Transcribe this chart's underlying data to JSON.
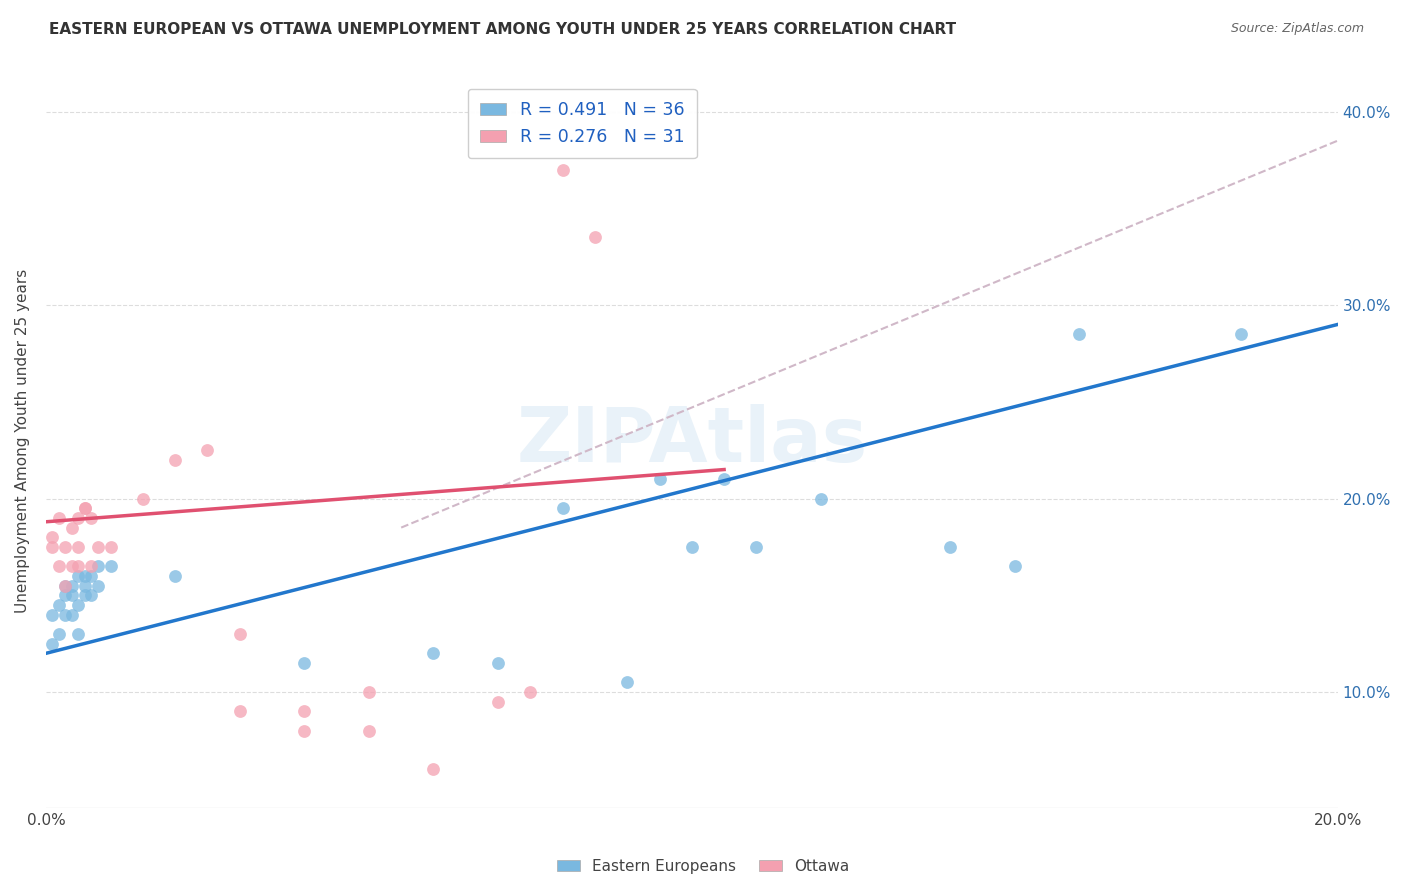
{
  "title": "EASTERN EUROPEAN VS OTTAWA UNEMPLOYMENT AMONG YOUTH UNDER 25 YEARS CORRELATION CHART",
  "source": "Source: ZipAtlas.com",
  "ylabel": "Unemployment Among Youth under 25 years",
  "xlim": [
    0.0,
    0.2
  ],
  "ylim": [
    0.04,
    0.42
  ],
  "xticks": [
    0.0,
    0.02,
    0.04,
    0.06,
    0.08,
    0.1,
    0.12,
    0.14,
    0.16,
    0.18,
    0.2
  ],
  "yticks": [
    0.1,
    0.2,
    0.3,
    0.4
  ],
  "blue_R": 0.491,
  "blue_N": 36,
  "pink_R": 0.276,
  "pink_N": 31,
  "blue_color": "#7ab8e0",
  "pink_color": "#f4a0b0",
  "blue_line_color": "#2277cc",
  "pink_line_color": "#e05070",
  "dashed_line_color": "#d0b8c8",
  "legend_text_color": "#2060c0",
  "blue_scatter_x": [
    0.001,
    0.001,
    0.002,
    0.002,
    0.003,
    0.003,
    0.003,
    0.004,
    0.004,
    0.004,
    0.005,
    0.005,
    0.005,
    0.006,
    0.006,
    0.006,
    0.007,
    0.007,
    0.008,
    0.008,
    0.01,
    0.02,
    0.04,
    0.06,
    0.07,
    0.08,
    0.09,
    0.095,
    0.1,
    0.105,
    0.11,
    0.12,
    0.14,
    0.15,
    0.16,
    0.185
  ],
  "blue_scatter_y": [
    0.125,
    0.14,
    0.13,
    0.145,
    0.14,
    0.15,
    0.155,
    0.14,
    0.15,
    0.155,
    0.13,
    0.145,
    0.16,
    0.15,
    0.155,
    0.16,
    0.15,
    0.16,
    0.155,
    0.165,
    0.165,
    0.16,
    0.115,
    0.12,
    0.115,
    0.195,
    0.105,
    0.21,
    0.175,
    0.21,
    0.175,
    0.2,
    0.175,
    0.165,
    0.285,
    0.285
  ],
  "pink_scatter_x": [
    0.001,
    0.001,
    0.002,
    0.002,
    0.003,
    0.003,
    0.004,
    0.004,
    0.005,
    0.005,
    0.005,
    0.006,
    0.006,
    0.007,
    0.007,
    0.008,
    0.01,
    0.015,
    0.02,
    0.025,
    0.03,
    0.04,
    0.05,
    0.06,
    0.07,
    0.075,
    0.08,
    0.085,
    0.03,
    0.04,
    0.05
  ],
  "pink_scatter_y": [
    0.175,
    0.18,
    0.165,
    0.19,
    0.155,
    0.175,
    0.185,
    0.165,
    0.19,
    0.175,
    0.165,
    0.195,
    0.195,
    0.165,
    0.19,
    0.175,
    0.175,
    0.2,
    0.22,
    0.225,
    0.13,
    0.08,
    0.1,
    0.06,
    0.095,
    0.1,
    0.37,
    0.335,
    0.09,
    0.09,
    0.08
  ],
  "blue_line_x": [
    0.0,
    0.2
  ],
  "blue_line_y": [
    0.12,
    0.29
  ],
  "pink_line_x": [
    0.0,
    0.105
  ],
  "pink_line_y": [
    0.188,
    0.215
  ],
  "dashed_line_x": [
    0.055,
    0.2
  ],
  "dashed_line_y": [
    0.185,
    0.385
  ],
  "bottom_legend": [
    {
      "label": "Eastern Europeans",
      "color": "#7ab8e0"
    },
    {
      "label": "Ottawa",
      "color": "#f4a0b0"
    }
  ]
}
